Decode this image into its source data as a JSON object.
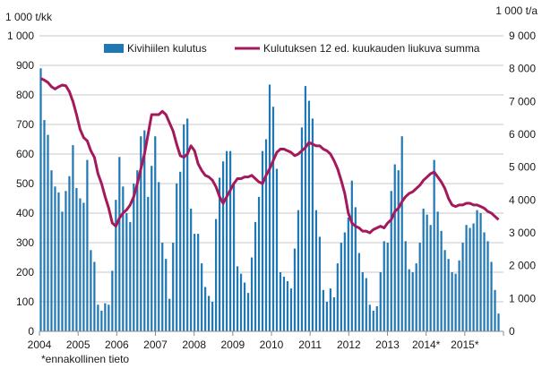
{
  "colors": {
    "bar": "#1f77b4",
    "line": "#a3195b",
    "grid": "#c8c8c8",
    "axis": "#8c8c8c"
  },
  "chart_data": {
    "type": "bar+line",
    "title": "",
    "ylabel_left": "1 000 t/kk",
    "ylabel_right": "1 000 t/a",
    "ylim_left": [
      0,
      1000
    ],
    "ylim_right": [
      0,
      9000
    ],
    "yticks_left": [
      "0",
      "100",
      "200",
      "300",
      "400",
      "500",
      "600",
      "700",
      "800",
      "900",
      "1 000"
    ],
    "yticks_right": [
      "0",
      "1 000",
      "2 000",
      "3 000",
      "4 000",
      "5 000",
      "6 000",
      "7 000",
      "8 000",
      "9 000"
    ],
    "x_tick_labels": [
      "2004",
      "2005",
      "2006",
      "2007",
      "2008",
      "2009",
      "2010",
      "2011",
      "2012",
      "2013",
      "2014*",
      "2015*"
    ],
    "footnote": "*ennakollinen tieto",
    "legend_position": "top",
    "grid": true,
    "series": [
      {
        "name": "Kivihiilen kulutus",
        "type": "bar",
        "axis": "left",
        "values": [
          890,
          715,
          665,
          545,
          490,
          470,
          405,
          475,
          525,
          630,
          485,
          450,
          435,
          580,
          275,
          235,
          90,
          70,
          95,
          90,
          205,
          445,
          590,
          490,
          400,
          370,
          500,
          545,
          660,
          680,
          455,
          560,
          660,
          505,
          300,
          245,
          110,
          300,
          500,
          540,
          700,
          720,
          415,
          330,
          330,
          230,
          150,
          120,
          100,
          380,
          520,
          575,
          610,
          610,
          500,
          220,
          195,
          165,
          130,
          250,
          370,
          455,
          610,
          650,
          835,
          760,
          550,
          200,
          185,
          170,
          145,
          280,
          410,
          690,
          830,
          780,
          720,
          410,
          320,
          140,
          100,
          145,
          115,
          230,
          300,
          335,
          385,
          510,
          420,
          265,
          200,
          180,
          90,
          70,
          85,
          200,
          305,
          300,
          475,
          565,
          545,
          660,
          305,
          210,
          200,
          230,
          300,
          415,
          395,
          360,
          580,
          405,
          340,
          275,
          245,
          200,
          195,
          240,
          300,
          360,
          350,
          365,
          410,
          400,
          335,
          305,
          235,
          140,
          60
        ]
      },
      {
        "name": "Kulutuksen 12 ed. kuukauden liukuva summa",
        "type": "line",
        "axis": "right",
        "values": [
          7700,
          7650,
          7580,
          7450,
          7380,
          7450,
          7500,
          7480,
          7300,
          7000,
          6600,
          6150,
          5900,
          5800,
          5500,
          5300,
          4800,
          4500,
          4100,
          3750,
          3300,
          3200,
          3450,
          3600,
          3700,
          3850,
          4100,
          4500,
          4950,
          5400,
          6000,
          6600,
          6600,
          6600,
          6700,
          6600,
          6350,
          6100,
          5700,
          5350,
          5300,
          5400,
          5650,
          5500,
          5100,
          4900,
          4750,
          4700,
          4600,
          4400,
          4100,
          3900,
          4100,
          4300,
          4500,
          4650,
          4650,
          4700,
          4700,
          4750,
          4650,
          4550,
          4500,
          4750,
          4950,
          5200,
          5450,
          5550,
          5550,
          5500,
          5450,
          5350,
          5400,
          5500,
          5600,
          5750,
          5700,
          5650,
          5650,
          5550,
          5500,
          5400,
          5200,
          4950,
          4600,
          4200,
          3600,
          3300,
          3200,
          3150,
          3050,
          3050,
          3000,
          3100,
          3150,
          3200,
          3150,
          3300,
          3400,
          3650,
          3750,
          3950,
          4100,
          4200,
          4250,
          4350,
          4450,
          4600,
          4700,
          4800,
          4850,
          4700,
          4550,
          4350,
          4050,
          3850,
          3800,
          3850,
          3850,
          3900,
          3900,
          3850,
          3850,
          3800,
          3750,
          3650,
          3600,
          3500,
          3400
        ]
      }
    ]
  }
}
